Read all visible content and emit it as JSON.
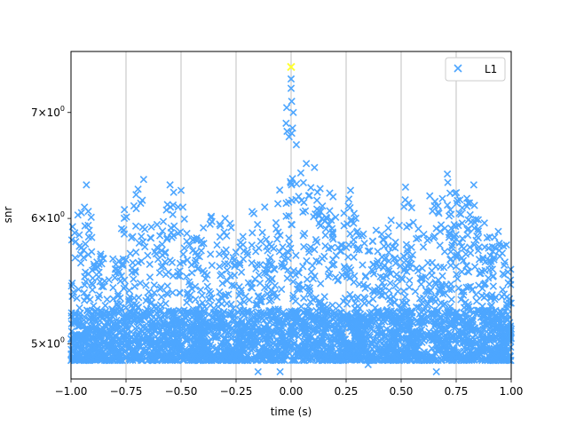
{
  "chart_data": {
    "type": "scatter",
    "title": "",
    "xlabel": "time (s)",
    "ylabel": "snr",
    "xlim": [
      -1.0,
      1.0
    ],
    "ylim": [
      4.75,
      7.65
    ],
    "yscale": "log",
    "grid": "vertical",
    "legend": {
      "placement": "top-right",
      "entries": [
        "L1"
      ]
    },
    "x_ticks": [
      {
        "value": -1.0,
        "label": "−1.00"
      },
      {
        "value": -0.75,
        "label": "−0.75"
      },
      {
        "value": -0.5,
        "label": "−0.50"
      },
      {
        "value": -0.25,
        "label": "−0.25"
      },
      {
        "value": 0.0,
        "label": "0.00"
      },
      {
        "value": 0.25,
        "label": "0.25"
      },
      {
        "value": 0.5,
        "label": "0.50"
      },
      {
        "value": 0.75,
        "label": "0.75"
      },
      {
        "value": 1.0,
        "label": "1.00"
      }
    ],
    "y_ticks": [
      {
        "value": 5,
        "mant": "5",
        "exp": "0"
      },
      {
        "value": 6,
        "mant": "6",
        "exp": "0"
      },
      {
        "value": 7,
        "mant": "7",
        "exp": "0"
      }
    ],
    "series": [
      {
        "name": "L1",
        "color": "#4da6ff",
        "marker": "x",
        "envelope": [
          [
            -1.0,
            5.85
          ],
          [
            -0.96,
            6.1
          ],
          [
            -0.93,
            6.3
          ],
          [
            -0.9,
            5.95
          ],
          [
            -0.86,
            5.7
          ],
          [
            -0.82,
            5.75
          ],
          [
            -0.78,
            5.7
          ],
          [
            -0.76,
            6.15
          ],
          [
            -0.72,
            6.2
          ],
          [
            -0.69,
            6.35
          ],
          [
            -0.66,
            5.95
          ],
          [
            -0.62,
            5.9
          ],
          [
            -0.58,
            6.0
          ],
          [
            -0.55,
            6.3
          ],
          [
            -0.51,
            6.2
          ],
          [
            -0.47,
            6.1
          ],
          [
            -0.43,
            5.85
          ],
          [
            -0.38,
            6.05
          ],
          [
            -0.35,
            6.05
          ],
          [
            -0.31,
            5.95
          ],
          [
            -0.27,
            5.95
          ],
          [
            -0.24,
            5.9
          ],
          [
            -0.2,
            5.8
          ],
          [
            -0.17,
            6.15
          ],
          [
            -0.13,
            5.85
          ],
          [
            -0.1,
            5.8
          ],
          [
            -0.07,
            6.0
          ],
          [
            -0.04,
            6.55
          ],
          [
            -0.02,
            6.9
          ],
          [
            0.0,
            7.2
          ],
          [
            0.02,
            6.95
          ],
          [
            0.04,
            6.75
          ],
          [
            0.06,
            6.55
          ],
          [
            0.09,
            6.45
          ],
          [
            0.12,
            6.4
          ],
          [
            0.15,
            6.35
          ],
          [
            0.18,
            6.25
          ],
          [
            0.21,
            6.05
          ],
          [
            0.24,
            6.2
          ],
          [
            0.27,
            6.25
          ],
          [
            0.3,
            5.95
          ],
          [
            0.34,
            5.8
          ],
          [
            0.38,
            5.9
          ],
          [
            0.41,
            5.95
          ],
          [
            0.44,
            6.05
          ],
          [
            0.48,
            5.95
          ],
          [
            0.52,
            6.25
          ],
          [
            0.56,
            6.1
          ],
          [
            0.6,
            5.95
          ],
          [
            0.64,
            6.2
          ],
          [
            0.67,
            6.25
          ],
          [
            0.7,
            6.35
          ],
          [
            0.74,
            6.3
          ],
          [
            0.78,
            6.1
          ],
          [
            0.81,
            6.3
          ],
          [
            0.84,
            6.2
          ],
          [
            0.88,
            5.95
          ],
          [
            0.92,
            5.85
          ],
          [
            0.96,
            5.85
          ],
          [
            1.0,
            5.6
          ]
        ],
        "floor": 4.9,
        "sparse_points": [
          [
            0.0,
            7.35
          ],
          [
            0.0,
            7.25
          ],
          [
            -0.02,
            7.05
          ],
          [
            0.01,
            7.0
          ],
          [
            -0.93,
            6.3
          ],
          [
            -0.67,
            6.35
          ],
          [
            -0.55,
            6.3
          ],
          [
            -0.5,
            6.25
          ],
          [
            0.27,
            6.25
          ],
          [
            0.71,
            6.4
          ],
          [
            0.83,
            6.3
          ],
          [
            0.52,
            6.28
          ],
          [
            0.63,
            6.2
          ],
          [
            -0.3,
            6.0
          ],
          [
            -0.12,
            6.1
          ],
          [
            0.1,
            5.1
          ],
          [
            0.35,
            4.85
          ],
          [
            0.66,
            4.8
          ],
          [
            -0.05,
            4.8
          ],
          [
            -0.15,
            4.8
          ]
        ]
      }
    ],
    "highlight": {
      "x": 0.0,
      "y": 7.48,
      "color": "#ffff33"
    }
  }
}
